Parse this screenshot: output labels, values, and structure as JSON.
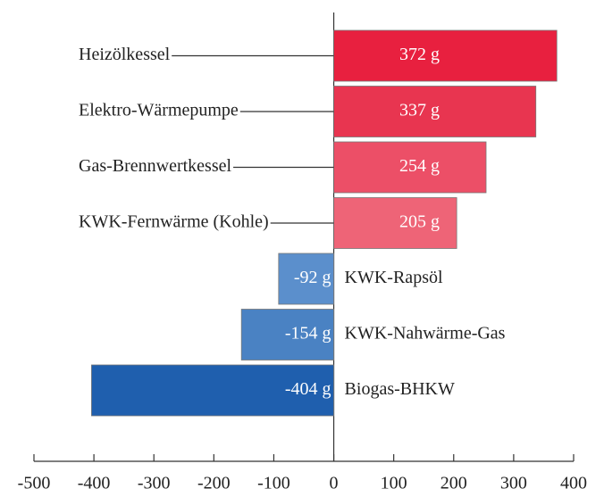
{
  "chart_data": {
    "type": "bar",
    "orientation": "horizontal",
    "categories": [
      "Heizölkessel",
      "Elektro-Wärmepumpe",
      "Gas-Brennwertkessel",
      "KWK-Fernwärme (Kohle)",
      "KWK-Rapsöl",
      "KWK-Nahwärme-Gas",
      "Biogas-BHKW"
    ],
    "values": [
      372,
      337,
      254,
      205,
      -92,
      -154,
      -404
    ],
    "value_labels": [
      "372 g",
      "337 g",
      "254 g",
      "205 g",
      "-92 g",
      "-154 g",
      "-404 g"
    ],
    "colors": [
      "#e8203f",
      "#e83550",
      "#ec4f67",
      "#ee6477",
      "#5b8fcc",
      "#4a82c3",
      "#1f5fae"
    ],
    "xlim": [
      -500,
      400
    ],
    "xticks": [
      -500,
      -400,
      -300,
      -200,
      -100,
      0,
      100,
      200,
      300,
      400
    ]
  }
}
